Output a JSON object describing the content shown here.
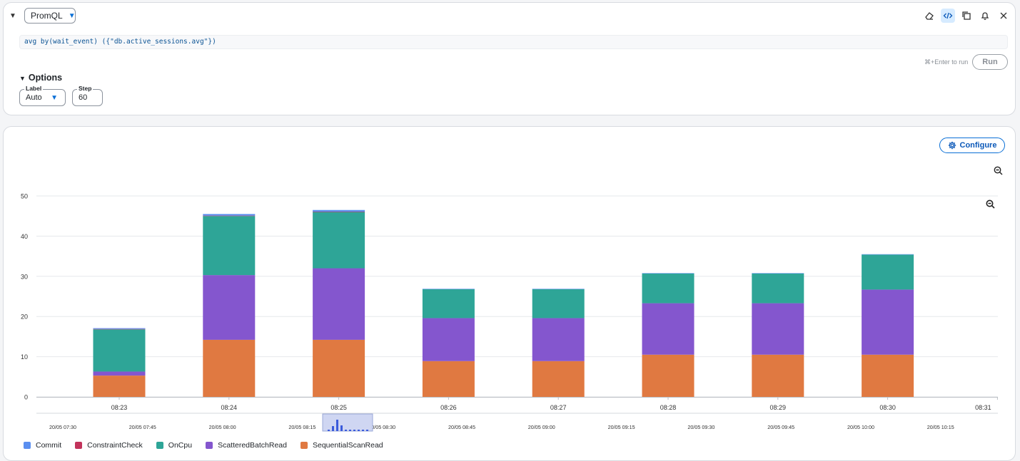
{
  "query_panel": {
    "language": "PromQL",
    "query": "avg by(wait_event) ({\"db.active_sessions.avg\"})",
    "run_hint": "⌘+Enter to run",
    "run_label": "Run",
    "options_title": "Options",
    "label_field": {
      "label": "Label",
      "value": "Auto"
    },
    "step_field": {
      "label": "Step",
      "value": "60"
    },
    "toolbar_icons": [
      "eraser-icon",
      "code-icon",
      "copy-icon",
      "bell-icon",
      "close-icon"
    ]
  },
  "chart_panel": {
    "configure_label": "Configure",
    "colors": {
      "accent": "#0a6fd6",
      "Commit": "#5b8ff0",
      "ConstraintCheck": "#c2335b",
      "OnCpu": "#2ea597",
      "ScatteredBatchRead": "#8456ce",
      "SequentialScanRead": "#e07941"
    }
  },
  "chart_data": {
    "type": "bar",
    "stacked": true,
    "categories": [
      "08:23",
      "08:24",
      "08:25",
      "08:26",
      "08:27",
      "08:28",
      "08:29",
      "08:30"
    ],
    "x_tick_labels": [
      "08:23",
      "08:24",
      "08:25",
      "08:26",
      "08:27",
      "08:28",
      "08:29",
      "08:30",
      "08:31"
    ],
    "ylim": [
      0,
      50
    ],
    "y_ticks": [
      0,
      10,
      20,
      30,
      40,
      50
    ],
    "grid": true,
    "legend_position": "bottom-left",
    "series": [
      {
        "name": "SequentialScanRead",
        "values": [
          5.3,
          14.2,
          14.2,
          8.9,
          8.9,
          10.5,
          10.5,
          10.5
        ]
      },
      {
        "name": "ScatteredBatchRead",
        "values": [
          1.0,
          16.1,
          17.8,
          10.7,
          10.7,
          12.8,
          12.8,
          16.2
        ]
      },
      {
        "name": "OnCpu",
        "values": [
          10.5,
          14.7,
          14.0,
          7.2,
          7.2,
          7.4,
          7.4,
          8.7
        ]
      },
      {
        "name": "ConstraintCheck",
        "values": [
          0.1,
          0.1,
          0.1,
          0.0,
          0.0,
          0.0,
          0.0,
          0.0
        ]
      },
      {
        "name": "Commit",
        "values": [
          0.2,
          0.4,
          0.4,
          0.1,
          0.1,
          0.1,
          0.1,
          0.1
        ]
      }
    ],
    "navigator": {
      "tick_labels": [
        "20/05 07:30",
        "20/05 07:45",
        "20/05 08:00",
        "20/05 08:15",
        "20/05 08:30",
        "20/05 08:45",
        "20/05 09:00",
        "20/05 09:15",
        "20/05 09:30",
        "20/05 09:45",
        "20/05 10:00",
        "20/05 10:15"
      ]
    }
  }
}
